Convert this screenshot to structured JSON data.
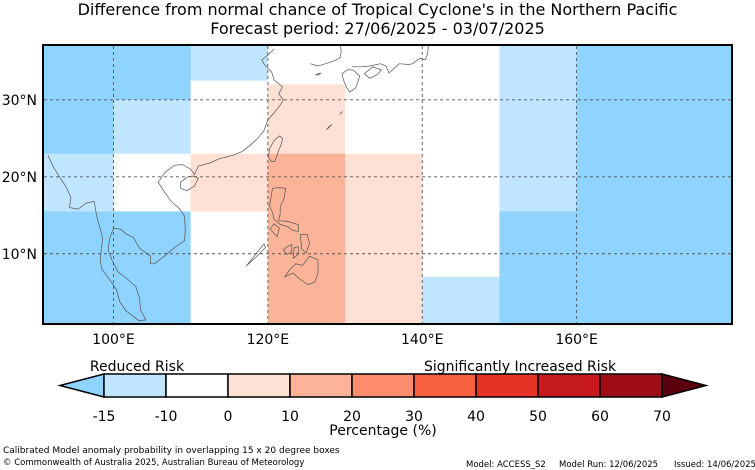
{
  "title": {
    "line1": "Difference from normal chance of Tropical Cyclone's in the Northern Pacific",
    "line2": "Forecast period: 27/06/2025 - 03/07/2025"
  },
  "map": {
    "extent": {
      "lon_min": 91,
      "lon_max": 180,
      "lat_min": 1,
      "lat_max": 37
    },
    "lon_ticks": [
      {
        "value": 100,
        "label": "100°E"
      },
      {
        "value": 120,
        "label": "120°E"
      },
      {
        "value": 140,
        "label": "140°E"
      },
      {
        "value": 160,
        "label": "160°E"
      }
    ],
    "lat_ticks": [
      {
        "value": 10,
        "label": "10°N"
      },
      {
        "value": 20,
        "label": "20°N"
      },
      {
        "value": 30,
        "label": "30°N"
      }
    ],
    "grid": true,
    "cells": [
      {
        "lon": [
          91,
          110
        ],
        "lat": [
          30,
          37
        ],
        "color": "#8fd3ff",
        "range": "-15 to -10"
      },
      {
        "lon": [
          91,
          100
        ],
        "lat": [
          23,
          30
        ],
        "color": "#8fd3ff",
        "range": "-15 to -10"
      },
      {
        "lon": [
          100,
          110
        ],
        "lat": [
          23,
          30
        ],
        "color": "#c0e6ff",
        "range": "-10 to 0"
      },
      {
        "lon": [
          91,
          100
        ],
        "lat": [
          15.5,
          23
        ],
        "color": "#c0e6ff",
        "range": "-10 to 0"
      },
      {
        "lon": [
          100,
          110
        ],
        "lat": [
          15.5,
          23
        ],
        "color": "#ffffff",
        "range": "0 to 10"
      },
      {
        "lon": [
          91,
          110
        ],
        "lat": [
          1,
          15.5
        ],
        "color": "#8fd3ff",
        "range": "-15 to -10"
      },
      {
        "lon": [
          110,
          120
        ],
        "lat": [
          32.5,
          37
        ],
        "color": "#c0e6ff",
        "range": "-10 to 0"
      },
      {
        "lon": [
          110,
          120
        ],
        "lat": [
          23,
          32.5
        ],
        "color": "#ffffff",
        "range": "0 to 10"
      },
      {
        "lon": [
          110,
          120
        ],
        "lat": [
          15.5,
          23
        ],
        "color": "#ffe0d5",
        "range": "0 to 10"
      },
      {
        "lon": [
          110,
          120
        ],
        "lat": [
          1,
          15.5
        ],
        "color": "#ffffff",
        "range": "0 to 10"
      },
      {
        "lon": [
          120,
          130
        ],
        "lat": [
          32,
          37
        ],
        "color": "#ffffff",
        "range": "0 to 10"
      },
      {
        "lon": [
          120,
          130
        ],
        "lat": [
          23,
          32
        ],
        "color": "#ffe0d5",
        "range": "0 to 10"
      },
      {
        "lon": [
          120,
          130
        ],
        "lat": [
          1,
          23
        ],
        "color": "#fcb499",
        "range": "10 to 20"
      },
      {
        "lon": [
          130,
          140
        ],
        "lat": [
          32,
          37
        ],
        "color": "#ffffff",
        "range": "0 to 10"
      },
      {
        "lon": [
          130,
          140
        ],
        "lat": [
          23,
          32
        ],
        "color": "#ffffff",
        "range": "0 to 10"
      },
      {
        "lon": [
          130,
          140
        ],
        "lat": [
          1,
          23
        ],
        "color": "#ffe0d5",
        "range": "0 to 10"
      },
      {
        "lon": [
          140,
          150
        ],
        "lat": [
          7,
          37
        ],
        "color": "#ffffff",
        "range": "0 to 10"
      },
      {
        "lon": [
          140,
          150
        ],
        "lat": [
          1,
          7
        ],
        "color": "#c0e6ff",
        "range": "-10 to 0"
      },
      {
        "lon": [
          150,
          160
        ],
        "lat": [
          15.5,
          37
        ],
        "color": "#c0e6ff",
        "range": "-10 to 0"
      },
      {
        "lon": [
          150,
          160
        ],
        "lat": [
          1,
          15.5
        ],
        "color": "#8fd3ff",
        "range": "-15 to -10"
      },
      {
        "lon": [
          160,
          180
        ],
        "lat": [
          1,
          37
        ],
        "color": "#8fd3ff",
        "range": "-15 to -10"
      }
    ],
    "coastlines": [
      [
        [
          91.5,
          22.8
        ],
        [
          92.2,
          21.3
        ],
        [
          93.0,
          20.0
        ],
        [
          93.8,
          18.8
        ],
        [
          94.5,
          17.3
        ],
        [
          94.3,
          16.0
        ],
        [
          95.4,
          15.8
        ],
        [
          96.5,
          16.6
        ],
        [
          97.5,
          16.8
        ],
        [
          97.8,
          15.0
        ],
        [
          98.2,
          13.5
        ],
        [
          98.6,
          12.0
        ],
        [
          98.4,
          10.5
        ],
        [
          98.3,
          9.0
        ],
        [
          98.5,
          8.0
        ],
        [
          99.6,
          6.5
        ],
        [
          100.4,
          5.3
        ],
        [
          100.8,
          3.8
        ],
        [
          101.6,
          2.6
        ],
        [
          103.3,
          1.3
        ],
        [
          104.2,
          1.4
        ],
        [
          103.5,
          2.7
        ],
        [
          103.4,
          4.2
        ],
        [
          102.9,
          5.7
        ],
        [
          101.6,
          6.9
        ],
        [
          100.6,
          7.6
        ],
        [
          99.8,
          9.2
        ],
        [
          99.3,
          10.5
        ],
        [
          99.5,
          12.0
        ],
        [
          100.0,
          13.3
        ],
        [
          100.9,
          13.2
        ],
        [
          101.6,
          12.6
        ],
        [
          102.6,
          12.1
        ],
        [
          103.4,
          10.7
        ],
        [
          104.8,
          9.7
        ],
        [
          104.8,
          8.7
        ],
        [
          105.3,
          8.7
        ],
        [
          106.6,
          9.7
        ],
        [
          107.9,
          10.8
        ],
        [
          109.2,
          11.7
        ],
        [
          109.3,
          13.0
        ],
        [
          109.2,
          14.9
        ],
        [
          108.5,
          15.9
        ],
        [
          107.4,
          16.9
        ],
        [
          106.5,
          18.2
        ],
        [
          105.8,
          19.3
        ],
        [
          106.7,
          20.6
        ],
        [
          107.9,
          21.5
        ],
        [
          108.9,
          21.6
        ],
        [
          110.0,
          21.0
        ],
        [
          110.5,
          20.3
        ],
        [
          111.0,
          21.4
        ],
        [
          112.5,
          21.8
        ],
        [
          113.6,
          22.3
        ],
        [
          114.3,
          22.5
        ],
        [
          115.5,
          22.8
        ],
        [
          116.7,
          23.3
        ],
        [
          117.7,
          24.1
        ],
        [
          118.7,
          25.0
        ],
        [
          119.5,
          26.0
        ],
        [
          120.0,
          27.4
        ],
        [
          120.8,
          28.3
        ],
        [
          121.6,
          29.3
        ],
        [
          122.0,
          30.0
        ],
        [
          121.4,
          30.8
        ],
        [
          121.9,
          31.7
        ],
        [
          120.8,
          32.6
        ],
        [
          120.5,
          33.6
        ],
        [
          119.6,
          34.5
        ],
        [
          119.2,
          35.2
        ],
        [
          120.1,
          35.9
        ],
        [
          120.8,
          36.6
        ]
      ],
      [
        [
          108.7,
          18.5
        ],
        [
          109.5,
          18.2
        ],
        [
          110.5,
          18.8
        ],
        [
          111.0,
          19.8
        ],
        [
          110.4,
          20.1
        ],
        [
          109.6,
          20.0
        ],
        [
          108.7,
          19.3
        ],
        [
          108.7,
          18.5
        ]
      ],
      [
        [
          120.1,
          22.6
        ],
        [
          120.4,
          22.0
        ],
        [
          120.9,
          22.0
        ],
        [
          121.4,
          23.4
        ],
        [
          121.8,
          24.4
        ],
        [
          121.9,
          25.0
        ],
        [
          121.5,
          25.3
        ],
        [
          120.8,
          24.7
        ],
        [
          120.2,
          23.6
        ],
        [
          120.1,
          22.6
        ]
      ],
      [
        [
          120.6,
          18.5
        ],
        [
          121.5,
          18.6
        ],
        [
          122.3,
          18.5
        ],
        [
          122.1,
          17.2
        ],
        [
          121.6,
          16.1
        ],
        [
          121.6,
          15.2
        ],
        [
          121.4,
          14.3
        ],
        [
          122.5,
          14.2
        ],
        [
          123.9,
          13.8
        ],
        [
          124.0,
          12.9
        ],
        [
          123.3,
          13.0
        ],
        [
          122.6,
          13.5
        ],
        [
          121.6,
          13.8
        ],
        [
          120.8,
          14.5
        ],
        [
          120.6,
          15.4
        ],
        [
          120.2,
          16.2
        ],
        [
          120.4,
          17.2
        ],
        [
          120.6,
          18.5
        ]
      ],
      [
        [
          124.2,
          12.5
        ],
        [
          125.1,
          12.5
        ],
        [
          125.4,
          11.4
        ],
        [
          125.0,
          10.1
        ],
        [
          124.4,
          10.6
        ],
        [
          124.3,
          11.6
        ],
        [
          124.2,
          12.5
        ]
      ],
      [
        [
          122.5,
          10.9
        ],
        [
          123.1,
          11.2
        ],
        [
          123.1,
          10.3
        ],
        [
          122.5,
          9.9
        ],
        [
          122.0,
          10.5
        ],
        [
          122.5,
          10.9
        ]
      ],
      [
        [
          123.4,
          10.8
        ],
        [
          124.0,
          10.9
        ],
        [
          124.0,
          10.0
        ],
        [
          123.3,
          9.4
        ],
        [
          123.4,
          10.8
        ]
      ],
      [
        [
          117.2,
          8.4
        ],
        [
          118.8,
          9.9
        ],
        [
          119.7,
          10.8
        ],
        [
          119.5,
          11.3
        ],
        [
          118.4,
          9.9
        ],
        [
          117.2,
          8.4
        ]
      ],
      [
        [
          125.4,
          9.7
        ],
        [
          126.5,
          9.2
        ],
        [
          126.5,
          7.5
        ],
        [
          126.1,
          6.3
        ],
        [
          125.2,
          6.0
        ],
        [
          124.0,
          6.8
        ],
        [
          123.3,
          7.5
        ],
        [
          122.2,
          7.0
        ],
        [
          122.8,
          7.9
        ],
        [
          123.6,
          8.7
        ],
        [
          124.5,
          8.5
        ],
        [
          125.4,
          9.7
        ]
      ],
      [
        [
          120.8,
          13.9
        ],
        [
          121.5,
          13.3
        ],
        [
          121.2,
          12.2
        ],
        [
          120.3,
          13.2
        ],
        [
          120.8,
          13.9
        ]
      ],
      [
        [
          125.5,
          34.7
        ],
        [
          126.5,
          34.4
        ],
        [
          127.5,
          34.7
        ],
        [
          128.7,
          35.1
        ],
        [
          129.4,
          35.5
        ],
        [
          129.5,
          36.4
        ],
        [
          129.4,
          37.0
        ]
      ],
      [
        [
          126.2,
          33.3
        ],
        [
          126.9,
          33.5
        ],
        [
          126.5,
          33.2
        ],
        [
          126.2,
          33.3
        ]
      ],
      [
        [
          129.6,
          33.4
        ],
        [
          130.3,
          33.9
        ],
        [
          131.0,
          33.9
        ],
        [
          131.9,
          33.1
        ],
        [
          131.4,
          31.6
        ],
        [
          130.6,
          31.0
        ],
        [
          130.2,
          31.6
        ],
        [
          129.8,
          32.6
        ],
        [
          129.6,
          33.4
        ]
      ],
      [
        [
          132.5,
          33.4
        ],
        [
          133.2,
          32.8
        ],
        [
          134.2,
          33.3
        ],
        [
          134.7,
          33.9
        ],
        [
          133.6,
          34.3
        ],
        [
          132.5,
          33.4
        ]
      ],
      [
        [
          130.9,
          34.3
        ],
        [
          132.0,
          34.3
        ],
        [
          133.2,
          34.4
        ],
        [
          134.6,
          34.7
        ],
        [
          135.3,
          34.4
        ],
        [
          135.7,
          33.5
        ],
        [
          136.6,
          34.3
        ],
        [
          137.0,
          34.7
        ],
        [
          138.2,
          34.6
        ],
        [
          138.8,
          34.7
        ],
        [
          139.4,
          35.2
        ],
        [
          139.8,
          35.4
        ],
        [
          140.4,
          35.2
        ],
        [
          140.7,
          36.0
        ],
        [
          140.8,
          37.0
        ]
      ],
      [
        [
          127.6,
          26.1
        ],
        [
          128.3,
          26.8
        ],
        [
          127.9,
          26.5
        ],
        [
          127.6,
          26.1
        ]
      ],
      [
        [
          129.3,
          28.1
        ],
        [
          129.7,
          28.5
        ],
        [
          129.5,
          28.3
        ],
        [
          129.3,
          28.1
        ]
      ]
    ]
  },
  "colorbar": {
    "left_label": "Reduced Risk",
    "right_label": "Significantly Increased Risk",
    "xlabel": "Percentage (%)",
    "ticks": [
      "-15",
      "-10",
      "0",
      "10",
      "20",
      "30",
      "40",
      "50",
      "60",
      "70"
    ],
    "under_color": "#8fd3ff",
    "over_color": "#5c0010",
    "segments": [
      "#c0e6ff",
      "#ffffff",
      "#ffe0d5",
      "#fcb499",
      "#fb8c6c",
      "#f6603f",
      "#e53326",
      "#c71a1f",
      "#9e0d16"
    ]
  },
  "footer": {
    "description": "Calibrated Model anomaly probability in overlapping 15 x 20 degree boxes",
    "copyright": "© Commonwealth of Australia 2025, Australian Bureau of Meteorology",
    "model": "Model: ACCESS_S2",
    "model_run": "Model Run: 12/06/2025",
    "issued": "Issued: 14/06/2025"
  }
}
